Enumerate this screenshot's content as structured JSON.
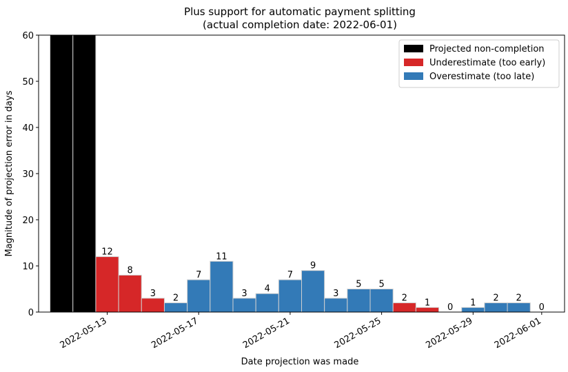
{
  "chart_data": {
    "type": "bar",
    "title": "Plus support for automatic payment splitting",
    "subtitle": "(actual completion date: 2022-06-01)",
    "xlabel": "Date projection was made",
    "ylabel": "Magnitude of projection error in days",
    "ylim": [
      0,
      60
    ],
    "yticks": [
      0,
      10,
      20,
      30,
      40,
      50,
      60
    ],
    "xlim": [
      "2022-05-10",
      "2022-06-02"
    ],
    "xticks": [
      "2022-05-13",
      "2022-05-17",
      "2022-05-21",
      "2022-05-25",
      "2022-05-29",
      "2022-06-01"
    ],
    "grid": false,
    "legend_position": "top-right",
    "categories": [
      "2022-05-11",
      "2022-05-12",
      "2022-05-13",
      "2022-05-14",
      "2022-05-15",
      "2022-05-16",
      "2022-05-17",
      "2022-05-18",
      "2022-05-19",
      "2022-05-20",
      "2022-05-21",
      "2022-05-22",
      "2022-05-23",
      "2022-05-24",
      "2022-05-25",
      "2022-05-26",
      "2022-05-27",
      "2022-05-28",
      "2022-05-29",
      "2022-05-30",
      "2022-05-31",
      "2022-06-01"
    ],
    "values": [
      60,
      60,
      12,
      8,
      3,
      2,
      7,
      11,
      3,
      4,
      7,
      9,
      3,
      5,
      5,
      2,
      1,
      0,
      1,
      2,
      2,
      0
    ],
    "data_labels": [
      "",
      "",
      "12",
      "8",
      "3",
      "2",
      "7",
      "11",
      "3",
      "4",
      "7",
      "9",
      "3",
      "5",
      "5",
      "2",
      "1",
      "0",
      "1",
      "2",
      "2",
      "0"
    ],
    "status": [
      "non-completion",
      "non-completion",
      "under",
      "under",
      "under",
      "over",
      "over",
      "over",
      "over",
      "over",
      "over",
      "over",
      "over",
      "over",
      "over",
      "under",
      "under",
      "under",
      "over",
      "over",
      "over",
      "over"
    ],
    "legend": [
      {
        "key": "non-completion",
        "label": "Projected non-completion",
        "color": "#000000"
      },
      {
        "key": "under",
        "label": "Underestimate (too early)",
        "color": "#d62728"
      },
      {
        "key": "over",
        "label": "Overestimate (too late)",
        "color": "#337ab7"
      }
    ]
  }
}
